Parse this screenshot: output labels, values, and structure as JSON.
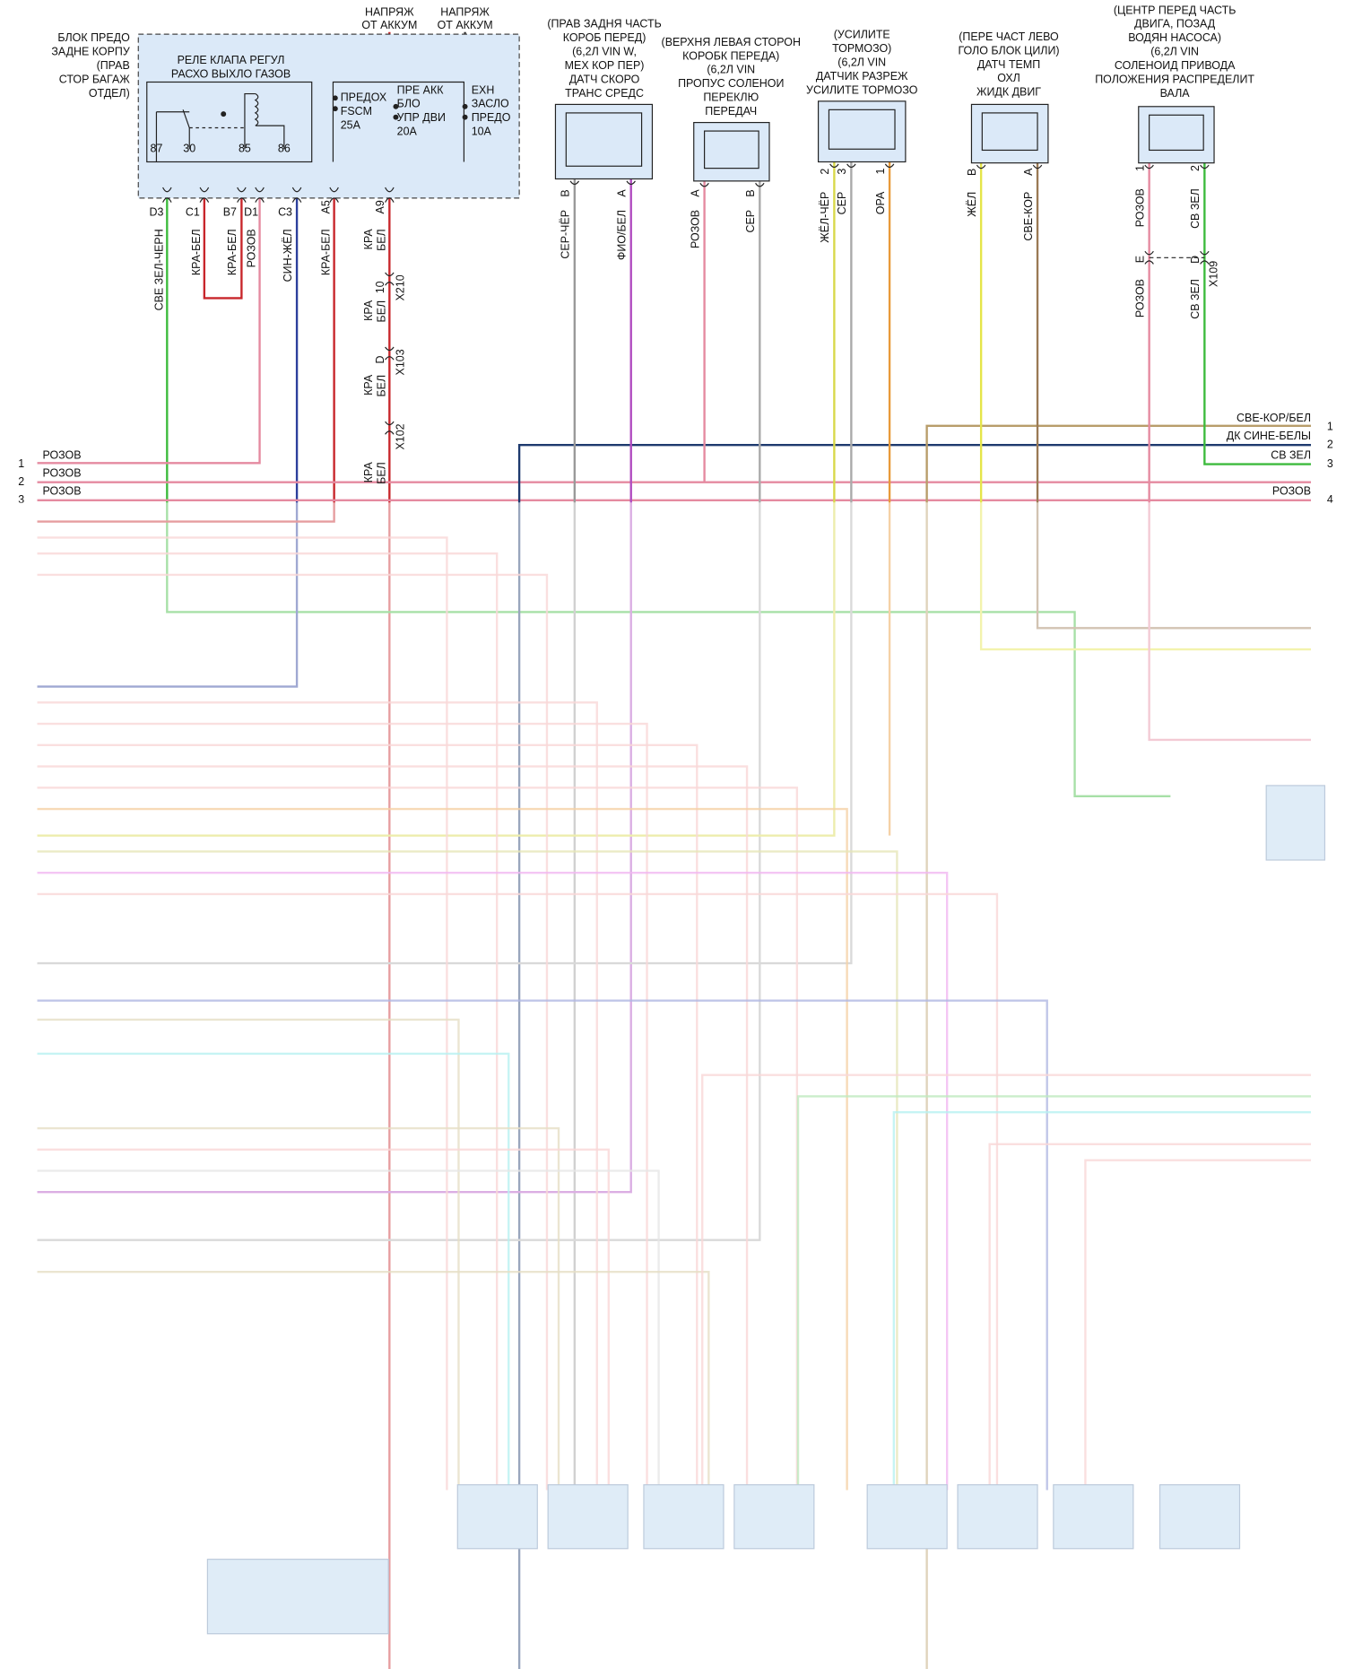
{
  "relay_module": {
    "location": [
      "БЛОК ПРЕДО",
      "ЗАДНЕ КОРПУ",
      "(ПРАВ",
      "СТОР БАГАЖ",
      "ОТДЕЛ)"
    ],
    "supply": [
      [
        "НАПРЯЖ",
        "ОТ АККУМ"
      ],
      [
        "НАПРЯЖ",
        "ОТ АККУМ"
      ]
    ],
    "relay_title": [
      "РЕЛЕ КЛАПА РЕГУЛ",
      "РАСХО ВЫХЛО ГАЗОВ"
    ],
    "relay_pins": [
      "87",
      "30",
      "85",
      "86"
    ],
    "fuses": [
      [
        "ПРЕДОХ",
        "FSCM",
        "25A"
      ],
      [
        "ПРЕ АКК",
        "БЛО",
        "УПР ДВИ",
        "20A"
      ],
      [
        "EXH",
        "ЗАСЛО",
        "ПРЕДО",
        "10A"
      ]
    ],
    "pins": [
      "D3",
      "C1",
      "B7",
      "D1",
      "C3",
      "A5",
      "A9"
    ],
    "wires": [
      "СВЕ ЗЕЛ-ЧЕРН",
      "КРА-БЕЛ",
      "КРА-БЕЛ",
      "РОЗОВ",
      "СИН-ЖЁЛ",
      "КРА-БЕЛ",
      [
        "КРА",
        "БЕЛ"
      ]
    ]
  },
  "inline_connectors": [
    {
      "pin": "10",
      "name": "X210",
      "wire_after": [
        "КРА",
        "БЕЛ"
      ]
    },
    {
      "pin": "D",
      "name": "X103",
      "wire_after": [
        "КРА",
        "БЕЛ"
      ]
    },
    {
      "name": "X102",
      "wire_after": [
        "КРА",
        "БЕЛ"
      ]
    }
  ],
  "components": [
    {
      "label": [
        "(ПРАВ ЗАДНЯ ЧАСТЬ",
        "КОРОБ ПЕРЕД)",
        "(6,2Л VIN W,",
        "МЕХ КОР ПЕР)",
        "ДАТЧ СКОРО",
        "ТРАНС СРЕДС"
      ],
      "pins": [
        "B",
        "A"
      ],
      "wires": [
        "СЕР-ЧЁР",
        "ФИО/БЕЛ"
      ]
    },
    {
      "label": [
        "(ВЕРХНЯ ЛЕВАЯ СТОРОН",
        "КОРОБК ПЕРЕДА)",
        "(6,2Л VIN",
        "ПРОПУС СОЛЕНОИ",
        "ПЕРЕКЛЮ",
        "ПЕРЕДАЧ"
      ],
      "pins": [
        "A",
        "B"
      ],
      "wires": [
        "РОЗОВ",
        "СЕР"
      ]
    },
    {
      "label": [
        "(УСИЛИТЕ",
        "ТОРМОЗО)",
        "(6,2Л VIN",
        "ДАТЧИК РАЗРЕЖ",
        "УСИЛИТЕ ТОРМОЗО"
      ],
      "pins": [
        "2",
        "3",
        "1"
      ],
      "wires": [
        "ЖЁЛ-ЧЁР",
        "СЕР",
        "ОРА"
      ]
    },
    {
      "label": [
        "(ПЕРЕ ЧАСТ ЛЕВО",
        "ГОЛО БЛОК ЦИЛИ)",
        "ДАТЧ ТЕМП",
        "ОХЛ",
        "ЖИДК ДВИГ"
      ],
      "pins": [
        "B",
        "A"
      ],
      "wires": [
        "ЖЁЛ",
        "СВЕ-КОР"
      ]
    },
    {
      "label": [
        "(ЦЕНТР ПЕРЕД ЧАСТЬ",
        "ДВИГА, ПОЗАД",
        "ВОДЯН НАСОСА)",
        "(6,2Л VIN",
        "СОЛЕНОИД ПРИВОДА",
        "ПОЛОЖЕНИЯ РАСПРЕДЕЛИТ",
        "ВАЛА"
      ],
      "pins": [
        "1",
        "2"
      ],
      "wires": [
        "РОЗОВ",
        "СВ ЗЕЛ"
      ],
      "connector": {
        "name": "X109",
        "pins": [
          "E",
          "D"
        ],
        "wires": [
          "РОЗОВ",
          "СВ ЗЕЛ"
        ]
      }
    }
  ],
  "edge_connectors": {
    "left": [
      {
        "pin": "1",
        "wire": "РОЗОВ"
      },
      {
        "pin": "2",
        "wire": "РОЗОВ"
      },
      {
        "pin": "3",
        "wire": "РОЗОВ"
      }
    ],
    "right": [
      {
        "pin": "1",
        "wire": "СВЕ-КОР/БЕЛ"
      },
      {
        "pin": "2",
        "wire": "ДК СИНЕ-БЕЛЫ"
      },
      {
        "pin": "3",
        "wire": "СВ ЗЕЛ"
      },
      {
        "pin": "4",
        "wire": "РОЗОВ"
      }
    ]
  }
}
